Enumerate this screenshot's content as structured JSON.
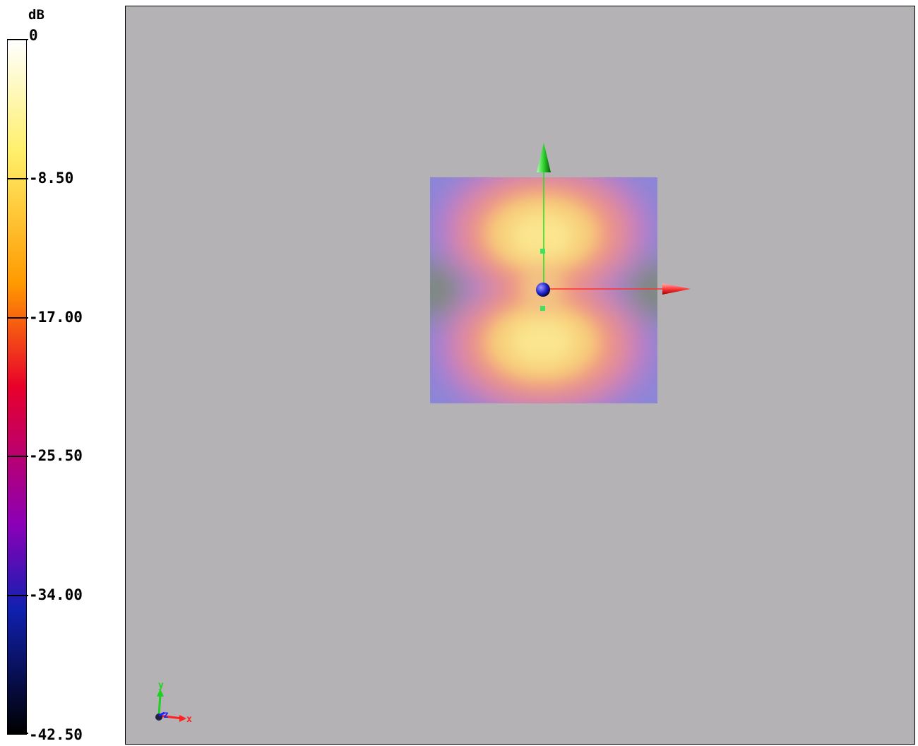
{
  "colorbar": {
    "unit": "dB",
    "ticks": [
      {
        "label": "0",
        "value": 0
      },
      {
        "label": "-8.50",
        "value": -8.5
      },
      {
        "label": "-17.00",
        "value": -17.0
      },
      {
        "label": "-25.50",
        "value": -25.5
      },
      {
        "label": "-34.00",
        "value": -34.0
      },
      {
        "label": "-42.50",
        "value": -42.5
      }
    ],
    "range": [
      -42.5,
      0
    ],
    "colors": {
      "max": "#ffffff",
      "high": "#fff06a",
      "upper_mid": "#ff9a00",
      "mid": "#e8002a",
      "lower_mid": "#8a00b8",
      "low": "#1020b0",
      "min": "#000000"
    }
  },
  "viewport": {
    "background": "#b5b2b5",
    "orientation_triad": {
      "x_label": "x",
      "y_label": "y",
      "z_label": "z",
      "x_color": "#ff2020",
      "y_color": "#20e020",
      "z_color": "#2020ff"
    },
    "manipulator": {
      "x_axis_color": "#ff3030",
      "y_axis_color": "#30d030",
      "origin_color": "#3030ff"
    }
  }
}
